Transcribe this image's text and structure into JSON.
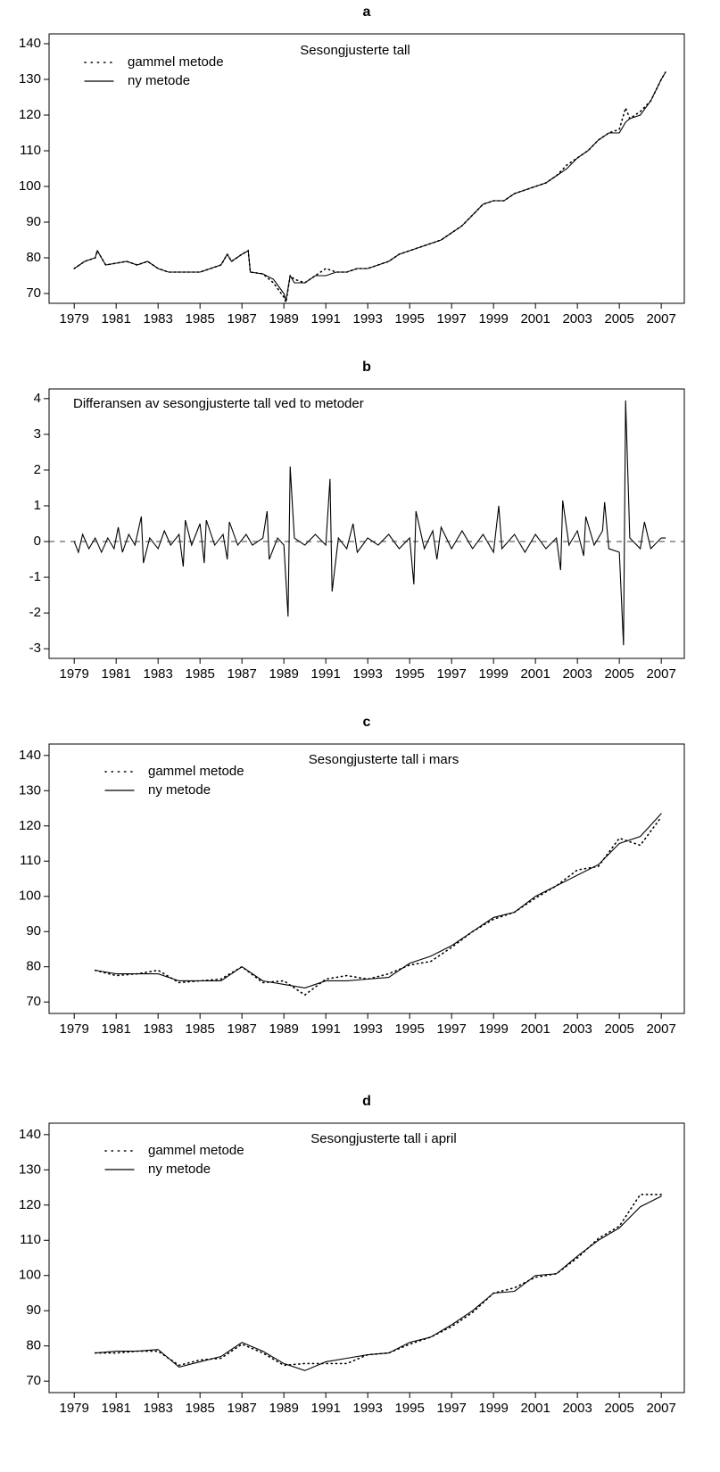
{
  "chart_data": [
    {
      "type": "line",
      "title": "a",
      "annotation": "Sesongjusterte tall",
      "x": [
        1979.0,
        1979.5,
        1980.0,
        1980.1,
        1980.5,
        1981.0,
        1981.5,
        1982.0,
        1982.5,
        1983.0,
        1983.5,
        1984.0,
        1984.5,
        1985.0,
        1985.5,
        1986.0,
        1986.3,
        1986.5,
        1987.0,
        1987.3,
        1987.4,
        1988.0,
        1988.5,
        1989.0,
        1989.1,
        1989.3,
        1989.5,
        1990.0,
        1990.5,
        1991.0,
        1991.5,
        1992.0,
        1992.5,
        1993.0,
        1993.5,
        1994.0,
        1994.5,
        1995.0,
        1995.5,
        1996.0,
        1996.5,
        1997.0,
        1997.5,
        1998.0,
        1998.5,
        1999.0,
        1999.5,
        2000.0,
        2000.5,
        2001.0,
        2001.5,
        2002.0,
        2002.5,
        2003.0,
        2003.5,
        2004.0,
        2004.5,
        2005.0,
        2005.3,
        2005.5,
        2006.0,
        2006.5,
        2007.0,
        2007.2
      ],
      "series": [
        {
          "name": "gammel metode",
          "color": "#000000",
          "style": "dotted",
          "values": [
            77,
            79,
            80,
            82,
            78,
            78.5,
            79,
            78,
            79,
            77,
            76,
            76,
            76,
            76,
            77,
            78,
            81,
            79,
            81,
            82,
            76,
            75.5,
            73,
            69,
            67.5,
            75,
            74,
            73,
            75,
            77,
            76,
            76,
            77,
            77,
            78,
            79,
            81,
            82,
            83,
            84,
            85,
            87,
            89,
            92,
            95,
            96,
            96,
            98,
            99,
            100,
            101,
            103,
            106,
            108,
            110,
            113,
            115,
            116,
            122,
            119,
            121,
            124,
            130,
            132
          ]
        },
        {
          "name": "ny metode",
          "color": "#000000",
          "style": "solid",
          "values": [
            77,
            79,
            80,
            82,
            78,
            78.5,
            79,
            78,
            79,
            77,
            76,
            76,
            76,
            76,
            77,
            78,
            81,
            79,
            81,
            82,
            76,
            75.5,
            74,
            70,
            68,
            75,
            73,
            73,
            75,
            75,
            76,
            76,
            77,
            77,
            78,
            79,
            81,
            82,
            83,
            84,
            85,
            87,
            89,
            92,
            95,
            96,
            96,
            98,
            99,
            100,
            101,
            103,
            105,
            108,
            110,
            113,
            115,
            115,
            118,
            119,
            120,
            124,
            130,
            132
          ]
        }
      ],
      "xlim": [
        1977.8,
        2008.1
      ],
      "xticks": [
        1979,
        1981,
        1983,
        1985,
        1987,
        1989,
        1991,
        1993,
        1995,
        1997,
        1999,
        2001,
        2003,
        2005,
        2007
      ],
      "ylim": [
        67.25,
        142.75
      ],
      "yticks": [
        70,
        80,
        90,
        100,
        110,
        120,
        130,
        140
      ],
      "legend": "upper-left"
    },
    {
      "type": "line",
      "title": "b",
      "annotation": "Differansen av sesongjusterte tall ved to metoder",
      "x": [
        1979.0,
        1979.2,
        1979.4,
        1979.7,
        1980.0,
        1980.3,
        1980.6,
        1980.9,
        1981.1,
        1981.3,
        1981.6,
        1981.9,
        1982.2,
        1982.3,
        1982.6,
        1983.0,
        1983.3,
        1983.6,
        1984.0,
        1984.2,
        1984.3,
        1984.6,
        1985.0,
        1985.2,
        1985.3,
        1985.7,
        1986.1,
        1986.3,
        1986.4,
        1986.8,
        1987.2,
        1987.5,
        1988.0,
        1988.2,
        1988.3,
        1988.7,
        1989.0,
        1989.2,
        1989.3,
        1989.5,
        1990.0,
        1990.5,
        1991.0,
        1991.2,
        1991.3,
        1991.6,
        1992.0,
        1992.3,
        1992.5,
        1993.0,
        1993.5,
        1994.0,
        1994.5,
        1995.0,
        1995.2,
        1995.3,
        1995.7,
        1996.1,
        1996.3,
        1996.5,
        1997.0,
        1997.5,
        1998.0,
        1998.5,
        1999.0,
        1999.25,
        1999.4,
        2000.0,
        2000.5,
        2001.0,
        2001.5,
        2002.0,
        2002.2,
        2002.3,
        2002.6,
        2003.0,
        2003.3,
        2003.4,
        2003.8,
        2004.2,
        2004.3,
        2004.5,
        2005.0,
        2005.2,
        2005.3,
        2005.5,
        2006.0,
        2006.2,
        2006.5,
        2007.0,
        2007.2
      ],
      "values": [
        0,
        -0.3,
        0.2,
        -0.2,
        0.1,
        -0.3,
        0.1,
        -0.2,
        0.4,
        -0.3,
        0.2,
        -0.1,
        0.7,
        -0.6,
        0.1,
        -0.2,
        0.3,
        -0.1,
        0.2,
        -0.7,
        0.6,
        -0.1,
        0.5,
        -0.6,
        0.6,
        -0.1,
        0.2,
        -0.5,
        0.55,
        -0.1,
        0.2,
        -0.1,
        0.1,
        0.85,
        -0.5,
        0.1,
        -0.1,
        -2.1,
        2.1,
        0.1,
        -0.1,
        0.2,
        -0.1,
        1.75,
        -1.4,
        0.1,
        -0.2,
        0.5,
        -0.3,
        0.1,
        -0.1,
        0.2,
        -0.2,
        0.1,
        -1.2,
        0.85,
        -0.2,
        0.3,
        -0.5,
        0.4,
        -0.2,
        0.3,
        -0.2,
        0.2,
        -0.3,
        1.0,
        -0.2,
        0.2,
        -0.3,
        0.2,
        -0.2,
        0.1,
        -0.8,
        1.15,
        -0.1,
        0.3,
        -0.4,
        0.7,
        -0.1,
        0.3,
        1.1,
        -0.2,
        -0.3,
        -2.9,
        3.95,
        0.1,
        -0.2,
        0.55,
        -0.2,
        0.1,
        0.1
      ],
      "color": "#000000",
      "reference_line": 0,
      "xlim": [
        1977.8,
        2008.1
      ],
      "xticks": [
        1979,
        1981,
        1983,
        1985,
        1987,
        1989,
        1991,
        1993,
        1995,
        1997,
        1999,
        2001,
        2003,
        2005,
        2007
      ],
      "ylim": [
        -3.27,
        4.27
      ],
      "yticks": [
        -3,
        -2,
        -1,
        0,
        1,
        2,
        3,
        4
      ]
    },
    {
      "type": "line",
      "title": "c",
      "annotation": "Sesongjusterte tall i mars",
      "x": [
        1980,
        1981,
        1982,
        1983,
        1984,
        1985,
        1986,
        1987,
        1988,
        1989,
        1990,
        1991,
        1992,
        1993,
        1994,
        1995,
        1996,
        1997,
        1998,
        1999,
        2000,
        2001,
        2002,
        2003,
        2004,
        2005,
        2006,
        2007
      ],
      "series": [
        {
          "name": "gammel metode",
          "color": "#000000",
          "style": "dotted",
          "values": [
            79,
            77.5,
            78,
            79,
            75.5,
            76,
            76.5,
            80,
            75.5,
            76,
            72,
            76.5,
            77.5,
            76.5,
            78,
            80.5,
            81.5,
            85.5,
            90,
            93.5,
            95.5,
            99.5,
            103,
            107.5,
            108.5,
            116.5,
            114.5,
            122.5
          ]
        },
        {
          "name": "ny metode",
          "color": "#000000",
          "style": "solid",
          "values": [
            79,
            78,
            78,
            78,
            76,
            76,
            76,
            80,
            76,
            75,
            74,
            76,
            76,
            76.5,
            77,
            81,
            83,
            86,
            90,
            94,
            95.5,
            100,
            103,
            106,
            109,
            115,
            117,
            123.5
          ]
        }
      ],
      "xlim": [
        1977.8,
        2008.1
      ],
      "xticks": [
        1979,
        1981,
        1983,
        1985,
        1987,
        1989,
        1991,
        1993,
        1995,
        1997,
        1999,
        2001,
        2003,
        2005,
        2007
      ],
      "ylim": [
        66.75,
        143.25
      ],
      "yticks": [
        70,
        80,
        90,
        100,
        110,
        120,
        130,
        140
      ],
      "legend": "upper-left"
    },
    {
      "type": "line",
      "title": "d",
      "annotation": "Sesongjusterte tall i april",
      "x": [
        1980,
        1981,
        1982,
        1983,
        1984,
        1985,
        1986,
        1987,
        1988,
        1989,
        1990,
        1991,
        1992,
        1993,
        1994,
        1995,
        1996,
        1997,
        1998,
        1999,
        2000,
        2001,
        2002,
        2003,
        2004,
        2005,
        2006,
        2007
      ],
      "series": [
        {
          "name": "gammel metode",
          "color": "#000000",
          "style": "dotted",
          "values": [
            78,
            78,
            78.5,
            78.5,
            74.5,
            76,
            76.5,
            80.5,
            78,
            74.5,
            75,
            75,
            75,
            77.5,
            78,
            80.5,
            82.5,
            85.5,
            89.5,
            95,
            96.5,
            99.5,
            100.5,
            105,
            110.5,
            114,
            123,
            123
          ]
        },
        {
          "name": "ny metode",
          "color": "#000000",
          "style": "solid",
          "values": [
            78,
            78.5,
            78.5,
            79,
            74,
            75.5,
            77,
            81,
            78.5,
            75,
            73,
            75.5,
            76.5,
            77.5,
            78,
            81,
            82.5,
            86,
            90,
            95,
            95.5,
            100,
            100.5,
            105.5,
            110,
            113.5,
            119.5,
            122.5
          ]
        }
      ],
      "xlim": [
        1977.8,
        2008.1
      ],
      "xticks": [
        1979,
        1981,
        1983,
        1985,
        1987,
        1989,
        1991,
        1993,
        1995,
        1997,
        1999,
        2001,
        2003,
        2005,
        2007
      ],
      "ylim": [
        66.75,
        143.25
      ],
      "yticks": [
        70,
        80,
        90,
        100,
        110,
        120,
        130,
        140
      ],
      "legend": "upper-left"
    }
  ]
}
